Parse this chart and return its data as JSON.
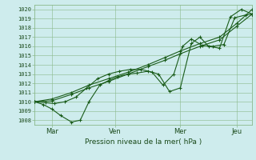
{
  "title": "Pression niveau de la mer( hPa )",
  "background_color": "#ceeced",
  "grid_color": "#8ab88a",
  "line_color": "#1a5c1a",
  "ylim": [
    1007.5,
    1020.5
  ],
  "yticks": [
    1008,
    1009,
    1010,
    1011,
    1012,
    1013,
    1014,
    1015,
    1016,
    1017,
    1018,
    1019,
    1020
  ],
  "xtick_labels": [
    "Mar",
    "Ven",
    "Mer",
    "Jeu"
  ],
  "xtick_positions": [
    0.08,
    0.37,
    0.67,
    0.93
  ],
  "series1": {
    "x": [
      0.0,
      0.04,
      0.08,
      0.12,
      0.17,
      0.21,
      0.25,
      0.3,
      0.34,
      0.38,
      0.43,
      0.47,
      0.52,
      0.57,
      0.62,
      0.67,
      0.72,
      0.76,
      0.8,
      0.85,
      0.9,
      0.95,
      1.0
    ],
    "y": [
      1010.0,
      1009.7,
      1009.2,
      1008.5,
      1007.8,
      1008.0,
      1010.0,
      1011.8,
      1012.3,
      1012.7,
      1013.0,
      1013.1,
      1013.3,
      1013.0,
      1011.1,
      1011.5,
      1016.3,
      1017.0,
      1016.0,
      1015.8,
      1019.2,
      1020.0,
      1019.5
    ]
  },
  "series2": {
    "x": [
      0.0,
      0.08,
      0.17,
      0.25,
      0.34,
      0.43,
      0.52,
      0.6,
      0.67,
      0.76,
      0.85,
      0.93,
      1.0
    ],
    "y": [
      1010.0,
      1010.3,
      1011.0,
      1011.8,
      1012.5,
      1013.2,
      1014.0,
      1014.8,
      1015.5,
      1016.3,
      1017.0,
      1018.5,
      1020.0
    ]
  },
  "series3": {
    "x": [
      0.0,
      0.08,
      0.17,
      0.25,
      0.34,
      0.43,
      0.52,
      0.6,
      0.67,
      0.76,
      0.85,
      0.93,
      1.0
    ],
    "y": [
      1010.0,
      1010.1,
      1010.8,
      1011.5,
      1012.2,
      1013.0,
      1013.8,
      1014.5,
      1015.2,
      1016.0,
      1016.7,
      1018.2,
      1019.5
    ]
  },
  "series4": {
    "x": [
      0.0,
      0.05,
      0.09,
      0.14,
      0.19,
      0.24,
      0.29,
      0.34,
      0.39,
      0.44,
      0.49,
      0.54,
      0.59,
      0.64,
      0.68,
      0.72,
      0.77,
      0.82,
      0.87,
      0.92,
      0.97,
      1.0
    ],
    "y": [
      1010.0,
      1009.9,
      1009.8,
      1010.0,
      1010.5,
      1011.5,
      1012.5,
      1013.0,
      1013.3,
      1013.5,
      1013.5,
      1013.2,
      1011.8,
      1013.0,
      1016.0,
      1016.8,
      1016.1,
      1016.0,
      1016.2,
      1019.1,
      1019.4,
      1019.5
    ]
  }
}
